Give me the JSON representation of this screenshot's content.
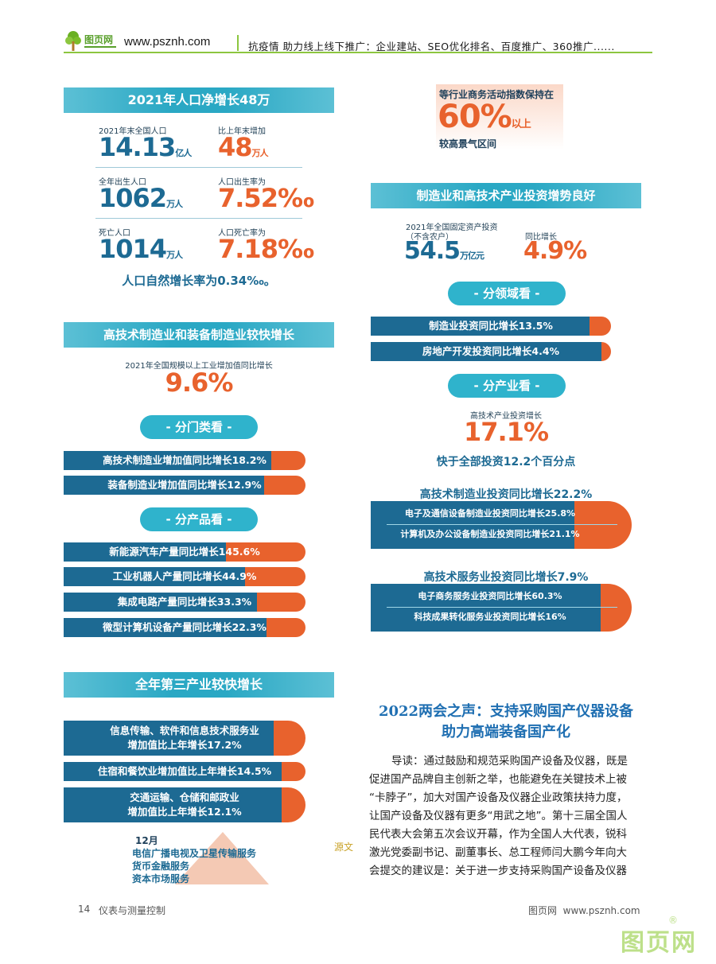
{
  "header": {
    "logo_text": "图页网",
    "site": "www.psznh.com",
    "slogan": "抗疫情 助力线上线下推广：企业建站、SEO优化排名、百度推广、360推广......"
  },
  "population": {
    "title": "2021年人口净增长48万",
    "items": [
      {
        "label": "2021年末全国人口",
        "value": "14.13",
        "unit": "亿人"
      },
      {
        "label": "比上年末增加",
        "value": "48",
        "unit": "万人"
      },
      {
        "label": "全年出生人口",
        "value": "1062",
        "unit": "万人"
      },
      {
        "label": "人口出生率为",
        "value": "7.52‰",
        "unit": ""
      },
      {
        "label": "死亡人口",
        "value": "1014",
        "unit": "万人"
      },
      {
        "label": "人口死亡率为",
        "value": "7.18‰",
        "unit": ""
      }
    ],
    "natural_growth": "人口自然增长率为0.34‰。"
  },
  "hightech_mfg": {
    "title": "高技术制造业和装备制造业较快增长",
    "sub_label": "2021年全国规模以上工业增加值同比增长",
    "value": "9.6%",
    "pill_category": "- 分门类看 -",
    "category_bars": [
      {
        "text": "高技术制造业增加值同比增长18.2%",
        "fill": 0.86
      },
      {
        "text": "装备制造业增加值同比增长12.9%",
        "fill": 0.83
      }
    ],
    "pill_product": "- 分产品看 -",
    "product_bars": [
      {
        "text": "新能源汽车产量同比增长145.6%",
        "fill": 0.67
      },
      {
        "text": "工业机器人产量同比增长44.9%",
        "fill": 0.75
      },
      {
        "text": "集成电路产量同比增长33.3%",
        "fill": 0.8
      },
      {
        "text": "微型计算机设备产量同比增长22.3%",
        "fill": 0.84
      }
    ]
  },
  "tertiary": {
    "title": "全年第三产业较快增长",
    "bars": [
      {
        "line1": "信息传输、软件和信息技术服务业",
        "line2": "增加值比上年增长17.2%",
        "fill": 0.87
      },
      {
        "line1": "住宿和餐饮业增加值比上年增长14.5%",
        "line2": "",
        "fill": 0.9
      },
      {
        "line1": "交通运输、仓储和邮政业",
        "line2": "增加值比上年增长12.1%",
        "fill": 0.9
      }
    ],
    "dec_label": "12月",
    "dec_items": [
      "电信广播电视及卫星传输服务",
      "货币金融服务",
      "资本市场服务"
    ]
  },
  "pmi": {
    "line1": "等行业商务活动指数保持在",
    "value": "60%",
    "suffix": "以上",
    "line2": "较高景气区间"
  },
  "investment": {
    "title": "制造业和高技术产业投资增势良好",
    "fixed_label": "2021年全国固定资产投资",
    "fixed_note": "（不含农户）",
    "fixed_value": "54.5",
    "fixed_unit": "万亿元",
    "growth_label": "同比增长",
    "growth_value": "4.9%",
    "pill_field": "- 分领域看 -",
    "field_bars": [
      {
        "text": "制造业投资同比增长13.5%",
        "fill": 0.91
      },
      {
        "text": "房地产开发投资同比增长4.4%",
        "fill": 0.96
      }
    ],
    "pill_industry": "- 分产业看 -",
    "ht_label": "高技术产业投资增长",
    "ht_value": "17.1%",
    "ht_faster": "快于全部投资12.2个百分点",
    "ht_mfg_title": "高技术制造业投资同比增长22.2%",
    "ht_mfg_bars": [
      {
        "text": "电子及通信设备制造业投资同比增长25.8%",
        "fill": 0.78
      },
      {
        "text": "计算机及办公设备制造业投资同比增长21.1%",
        "fill": 0.81
      }
    ],
    "ht_svc_title": "高技术服务业投资同比增长7.9%",
    "ht_svc_bars": [
      {
        "text": "电子商务服务业投资同比增长60.3%",
        "fill": 0.64
      },
      {
        "text": "科技成果转化服务业投资同比增长16%",
        "fill": 0.88
      }
    ]
  },
  "article": {
    "title_line1": "2022两会之声：支持采购国产仪器设备",
    "title_line2": "助力高端装备国产化",
    "source_tag": "源文",
    "paragraph_lines": [
      "导读：通过鼓励和规范采购国产设备及仪器，既是",
      "促进国产品牌自主创新之举，也能避免在关键技术上被",
      "“卡脖子”，加大对国产设备及仪器企业政策扶持力度，",
      "让国产设备及仪器有更多“用武之地”。第十三届全国人",
      "民代表大会第五次会议开幕，作为全国人大代表，锐科",
      "激光党委副书记、副董事长、总工程师闫大鹏今年向大",
      "会提交的建议是：关于进一步支持采购国产设备及仪器"
    ]
  },
  "footer": {
    "page_number": "14",
    "journal": "仪表与测量控制",
    "right": "图页网  www.psznh.com",
    "watermark": "图页网",
    "reg": "®"
  },
  "colors": {
    "teal": "#2aa8c4",
    "navy": "#1d6a93",
    "orange": "#e8622d",
    "green": "#8cc63f"
  }
}
